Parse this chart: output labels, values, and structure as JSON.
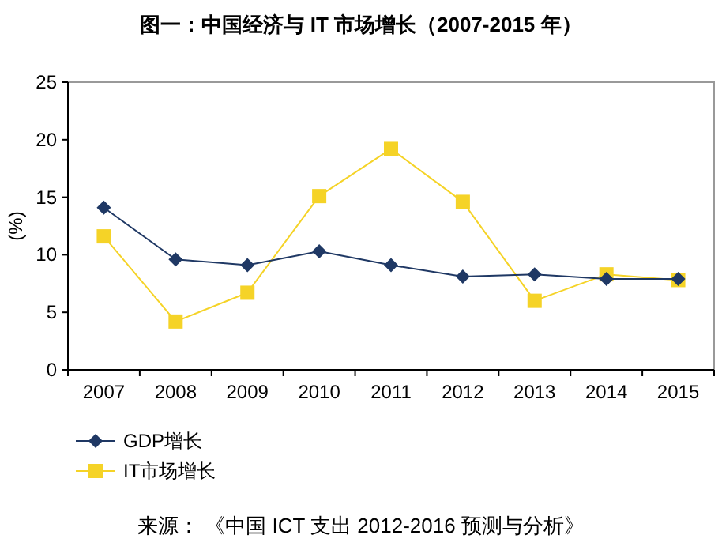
{
  "chart_data": {
    "type": "line",
    "title": "图一：中国经济与 IT 市场增长（2007-2015 年）",
    "ylabel": "(%)",
    "categories": [
      "2007",
      "2008",
      "2009",
      "2010",
      "2011",
      "2012",
      "2013",
      "2014",
      "2015"
    ],
    "series": [
      {
        "name": "GDP增长",
        "color": "#1f3864",
        "marker": "diamond",
        "values": [
          14.1,
          9.6,
          9.1,
          10.3,
          9.1,
          8.1,
          8.3,
          7.9,
          7.9
        ]
      },
      {
        "name": "IT市场增长",
        "color": "#f5d327",
        "marker": "square",
        "values": [
          11.6,
          4.2,
          6.7,
          15.1,
          19.2,
          14.6,
          6.0,
          8.3,
          7.8
        ]
      }
    ],
    "ylim": [
      0,
      25
    ],
    "yticks": [
      0,
      5,
      10,
      15,
      20,
      25
    ],
    "grid": false,
    "legend": "bottom left",
    "annotations": [
      "来源： 《中国 ICT 支出 2012-2016 预测与分析》"
    ]
  }
}
